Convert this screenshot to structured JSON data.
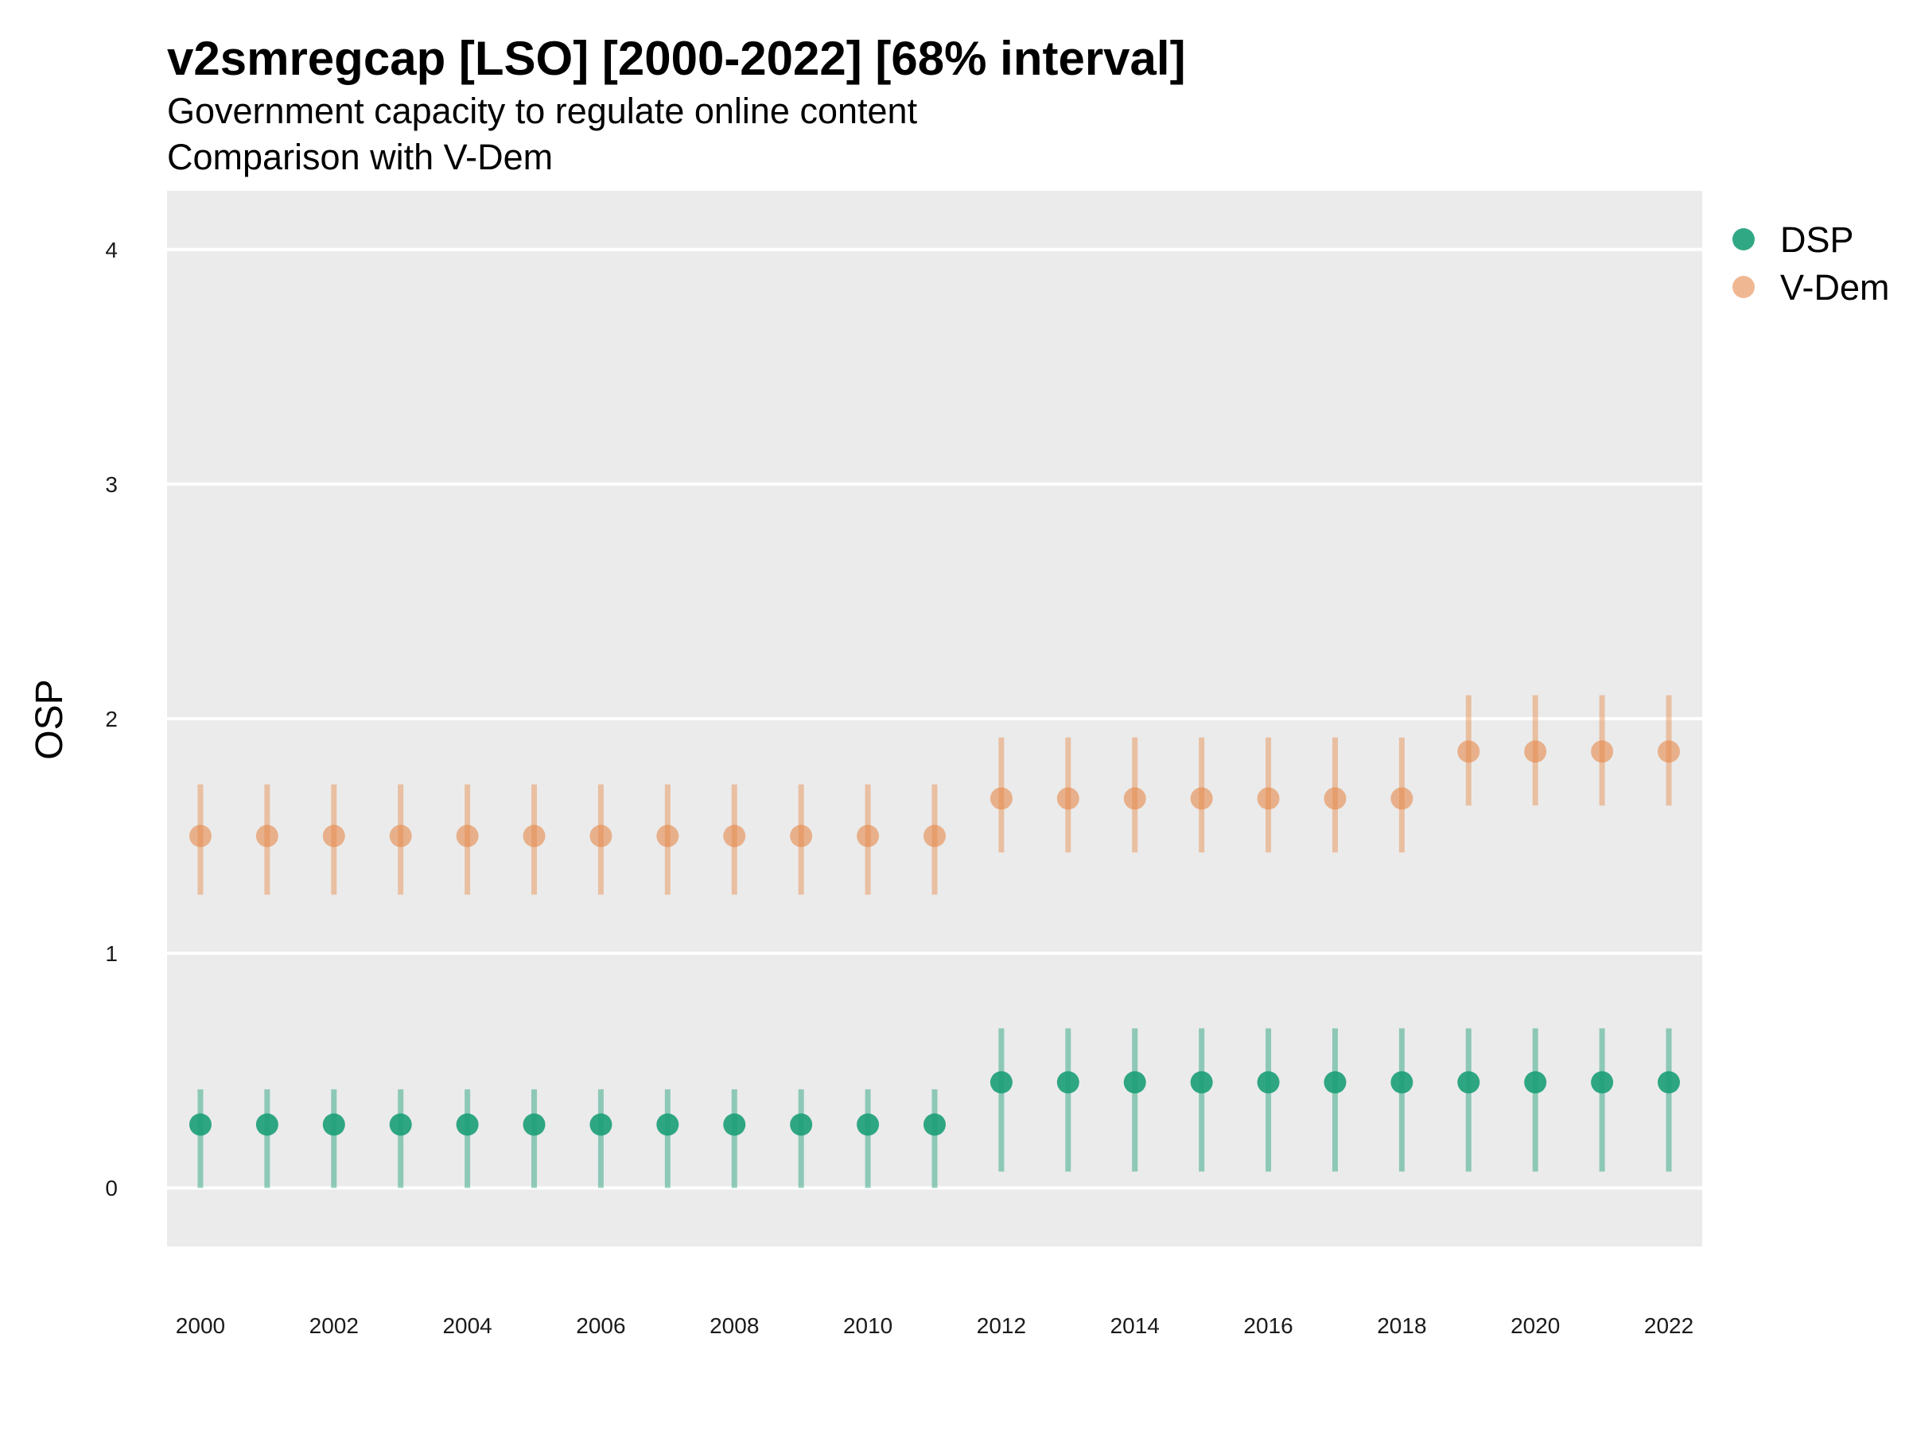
{
  "chart_data": {
    "type": "scatter",
    "title": "v2smregcap [LSO] [2000-2022] [68% interval]",
    "subtitle": [
      "Government capacity to regulate online content",
      "Comparison with V-Dem"
    ],
    "xlabel": "",
    "ylabel": "OSP",
    "x": [
      2000,
      2001,
      2002,
      2003,
      2004,
      2005,
      2006,
      2007,
      2008,
      2009,
      2010,
      2011,
      2012,
      2013,
      2014,
      2015,
      2016,
      2017,
      2018,
      2019,
      2020,
      2021,
      2022
    ],
    "x_ticks": [
      "2000",
      "2002",
      "2004",
      "2006",
      "2008",
      "2010",
      "2012",
      "2014",
      "2016",
      "2018",
      "2020",
      "2022"
    ],
    "y_ticks": [
      "0",
      "1",
      "2",
      "3",
      "4"
    ],
    "ylim": [
      -0.25,
      4.25
    ],
    "xlim": [
      1999.5,
      2022.5
    ],
    "grid": true,
    "legend_position": "right",
    "series": [
      {
        "name": "DSP",
        "color": "#1b9e77",
        "values": [
          0.27,
          0.27,
          0.27,
          0.27,
          0.27,
          0.27,
          0.27,
          0.27,
          0.27,
          0.27,
          0.27,
          0.27,
          0.45,
          0.45,
          0.45,
          0.45,
          0.45,
          0.45,
          0.45,
          0.45,
          0.45,
          0.45,
          0.45
        ],
        "lower": [
          0.0,
          0.0,
          0.0,
          0.0,
          0.0,
          0.0,
          0.0,
          0.0,
          0.0,
          0.0,
          0.0,
          0.0,
          0.07,
          0.07,
          0.07,
          0.07,
          0.07,
          0.07,
          0.07,
          0.07,
          0.07,
          0.07,
          0.07
        ],
        "upper": [
          0.42,
          0.42,
          0.42,
          0.42,
          0.42,
          0.42,
          0.42,
          0.42,
          0.42,
          0.42,
          0.42,
          0.42,
          0.68,
          0.68,
          0.68,
          0.68,
          0.68,
          0.68,
          0.68,
          0.68,
          0.68,
          0.68,
          0.68
        ]
      },
      {
        "name": "V-Dem",
        "color": "#e6894a",
        "values": [
          1.5,
          1.5,
          1.5,
          1.5,
          1.5,
          1.5,
          1.5,
          1.5,
          1.5,
          1.5,
          1.5,
          1.5,
          1.66,
          1.66,
          1.66,
          1.66,
          1.66,
          1.66,
          1.66,
          1.86,
          1.86,
          1.86,
          1.86
        ],
        "lower": [
          1.25,
          1.25,
          1.25,
          1.25,
          1.25,
          1.25,
          1.25,
          1.25,
          1.25,
          1.25,
          1.25,
          1.25,
          1.43,
          1.43,
          1.43,
          1.43,
          1.43,
          1.43,
          1.43,
          1.63,
          1.63,
          1.63,
          1.63
        ],
        "upper": [
          1.72,
          1.72,
          1.72,
          1.72,
          1.72,
          1.72,
          1.72,
          1.72,
          1.72,
          1.72,
          1.72,
          1.72,
          1.92,
          1.92,
          1.92,
          1.92,
          1.92,
          1.92,
          1.92,
          2.1,
          2.1,
          2.1,
          2.1
        ]
      }
    ]
  }
}
